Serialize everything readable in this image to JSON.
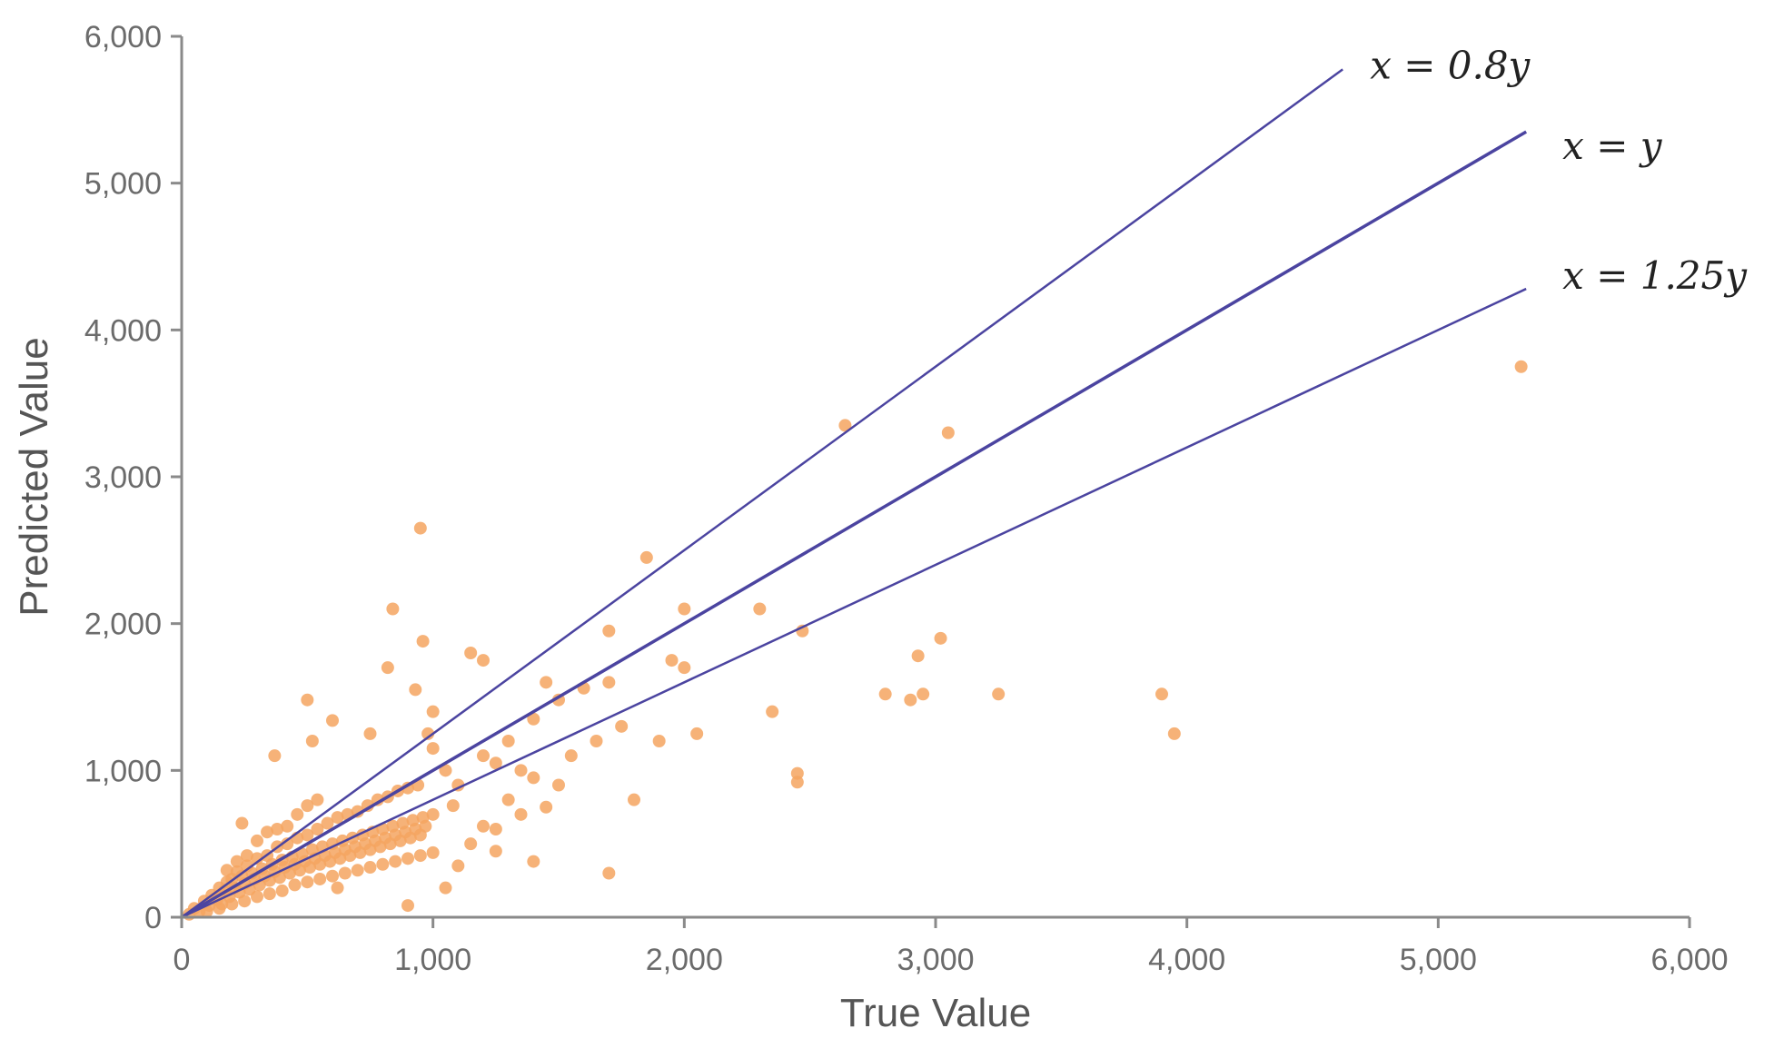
{
  "chart_data": {
    "type": "scatter",
    "title": "",
    "xlabel": "True Value",
    "ylabel": "Predicted Value",
    "xlim": [
      0,
      6000
    ],
    "ylim": [
      0,
      6000
    ],
    "xticks": [
      0,
      1000,
      2000,
      3000,
      4000,
      5000,
      6000
    ],
    "xtick_labels": [
      "0",
      "1,000",
      "2,000",
      "3,000",
      "4,000",
      "5,000",
      "6,000"
    ],
    "yticks": [
      0,
      1000,
      2000,
      3000,
      4000,
      5000,
      6000
    ],
    "ytick_labels": [
      "0",
      "1,000",
      "2,000",
      "3,000",
      "4,000",
      "5,000",
      "6,000"
    ],
    "grid": false,
    "point_color": "#f4a460",
    "reference_line_color": "#4b44a0",
    "reference_lines": [
      {
        "label": "x = 0.8y",
        "slope": 1.25,
        "x_end": 4620
      },
      {
        "label": "x = y",
        "slope": 1.0,
        "x_end": 5350
      },
      {
        "label": "x = 1.25y",
        "slope": 0.8,
        "x_end": 5350
      }
    ],
    "series": [
      {
        "points": [
          [
            30,
            20
          ],
          [
            50,
            60
          ],
          [
            70,
            40
          ],
          [
            90,
            110
          ],
          [
            110,
            80
          ],
          [
            120,
            150
          ],
          [
            140,
            120
          ],
          [
            150,
            200
          ],
          [
            160,
            90
          ],
          [
            170,
            180
          ],
          [
            180,
            240
          ],
          [
            190,
            140
          ],
          [
            200,
            260
          ],
          [
            210,
            200
          ],
          [
            220,
            310
          ],
          [
            230,
            170
          ],
          [
            240,
            280
          ],
          [
            250,
            230
          ],
          [
            260,
            350
          ],
          [
            270,
            190
          ],
          [
            280,
            300
          ],
          [
            290,
            260
          ],
          [
            300,
            400
          ],
          [
            310,
            220
          ],
          [
            320,
            330
          ],
          [
            330,
            280
          ],
          [
            340,
            420
          ],
          [
            350,
            250
          ],
          [
            360,
            360
          ],
          [
            370,
            310
          ],
          [
            380,
            480
          ],
          [
            390,
            270
          ],
          [
            400,
            390
          ],
          [
            410,
            340
          ],
          [
            420,
            500
          ],
          [
            430,
            300
          ],
          [
            440,
            410
          ],
          [
            450,
            360
          ],
          [
            460,
            540
          ],
          [
            470,
            320
          ],
          [
            480,
            430
          ],
          [
            490,
            380
          ],
          [
            500,
            560
          ],
          [
            510,
            340
          ],
          [
            520,
            460
          ],
          [
            530,
            400
          ],
          [
            540,
            600
          ],
          [
            550,
            360
          ],
          [
            560,
            480
          ],
          [
            570,
            420
          ],
          [
            580,
            640
          ],
          [
            590,
            380
          ],
          [
            600,
            500
          ],
          [
            610,
            440
          ],
          [
            620,
            680
          ],
          [
            630,
            400
          ],
          [
            640,
            520
          ],
          [
            650,
            460
          ],
          [
            660,
            700
          ],
          [
            670,
            420
          ],
          [
            680,
            540
          ],
          [
            690,
            480
          ],
          [
            700,
            720
          ],
          [
            710,
            440
          ],
          [
            720,
            560
          ],
          [
            730,
            500
          ],
          [
            740,
            760
          ],
          [
            750,
            460
          ],
          [
            760,
            580
          ],
          [
            770,
            520
          ],
          [
            780,
            800
          ],
          [
            790,
            480
          ],
          [
            800,
            600
          ],
          [
            810,
            540
          ],
          [
            820,
            820
          ],
          [
            830,
            500
          ],
          [
            840,
            620
          ],
          [
            850,
            560
          ],
          [
            860,
            860
          ],
          [
            870,
            520
          ],
          [
            880,
            640
          ],
          [
            890,
            580
          ],
          [
            900,
            880
          ],
          [
            910,
            540
          ],
          [
            920,
            660
          ],
          [
            930,
            600
          ],
          [
            940,
            900
          ],
          [
            950,
            560
          ],
          [
            960,
            680
          ],
          [
            970,
            620
          ],
          [
            100,
            40
          ],
          [
            150,
            60
          ],
          [
            200,
            90
          ],
          [
            250,
            110
          ],
          [
            300,
            140
          ],
          [
            350,
            160
          ],
          [
            400,
            180
          ],
          [
            450,
            220
          ],
          [
            500,
            240
          ],
          [
            550,
            260
          ],
          [
            600,
            280
          ],
          [
            650,
            300
          ],
          [
            700,
            320
          ],
          [
            750,
            340
          ],
          [
            800,
            360
          ],
          [
            850,
            380
          ],
          [
            900,
            400
          ],
          [
            950,
            420
          ],
          [
            1000,
            440
          ],
          [
            620,
            200
          ],
          [
            180,
            320
          ],
          [
            220,
            380
          ],
          [
            260,
            420
          ],
          [
            300,
            520
          ],
          [
            340,
            580
          ],
          [
            380,
            600
          ],
          [
            420,
            620
          ],
          [
            460,
            700
          ],
          [
            500,
            760
          ],
          [
            540,
            800
          ],
          [
            240,
            640
          ],
          [
            370,
            1100
          ],
          [
            500,
            1480
          ],
          [
            520,
            1200
          ],
          [
            600,
            1340
          ],
          [
            750,
            1250
          ],
          [
            820,
            1700
          ],
          [
            840,
            2100
          ],
          [
            930,
            1550
          ],
          [
            950,
            2650
          ],
          [
            960,
            1880
          ],
          [
            980,
            1250
          ],
          [
            1000,
            1400
          ],
          [
            1000,
            1150
          ],
          [
            1050,
            1000
          ],
          [
            1100,
            900
          ],
          [
            1150,
            1800
          ],
          [
            1200,
            1750
          ],
          [
            1200,
            1100
          ],
          [
            1250,
            1050
          ],
          [
            1300,
            1200
          ],
          [
            1350,
            1000
          ],
          [
            1400,
            950
          ],
          [
            1400,
            1350
          ],
          [
            1450,
            1600
          ],
          [
            1500,
            1480
          ],
          [
            1550,
            1100
          ],
          [
            1600,
            1560
          ],
          [
            1650,
            1200
          ],
          [
            1700,
            1950
          ],
          [
            1700,
            1600
          ],
          [
            1750,
            1300
          ],
          [
            1800,
            800
          ],
          [
            1850,
            2450
          ],
          [
            1900,
            1200
          ],
          [
            1950,
            1750
          ],
          [
            2000,
            1700
          ],
          [
            2050,
            1250
          ],
          [
            2000,
            2100
          ],
          [
            2300,
            2100
          ],
          [
            2350,
            1400
          ],
          [
            2450,
            920
          ],
          [
            2450,
            980
          ],
          [
            2470,
            1950
          ],
          [
            2640,
            3350
          ],
          [
            2800,
            1520
          ],
          [
            2900,
            1480
          ],
          [
            2930,
            1780
          ],
          [
            2950,
            1520
          ],
          [
            3020,
            1900
          ],
          [
            3050,
            3300
          ],
          [
            3250,
            1520
          ],
          [
            3900,
            1520
          ],
          [
            3950,
            1250
          ],
          [
            5330,
            3750
          ],
          [
            1700,
            300
          ],
          [
            1250,
            600
          ],
          [
            1100,
            350
          ],
          [
            1050,
            200
          ],
          [
            900,
            80
          ],
          [
            1350,
            700
          ],
          [
            1300,
            800
          ],
          [
            1450,
            750
          ],
          [
            1500,
            900
          ],
          [
            1150,
            500
          ],
          [
            1200,
            620
          ],
          [
            1000,
            700
          ],
          [
            1080,
            760
          ],
          [
            1250,
            450
          ],
          [
            1400,
            380
          ]
        ]
      }
    ]
  }
}
